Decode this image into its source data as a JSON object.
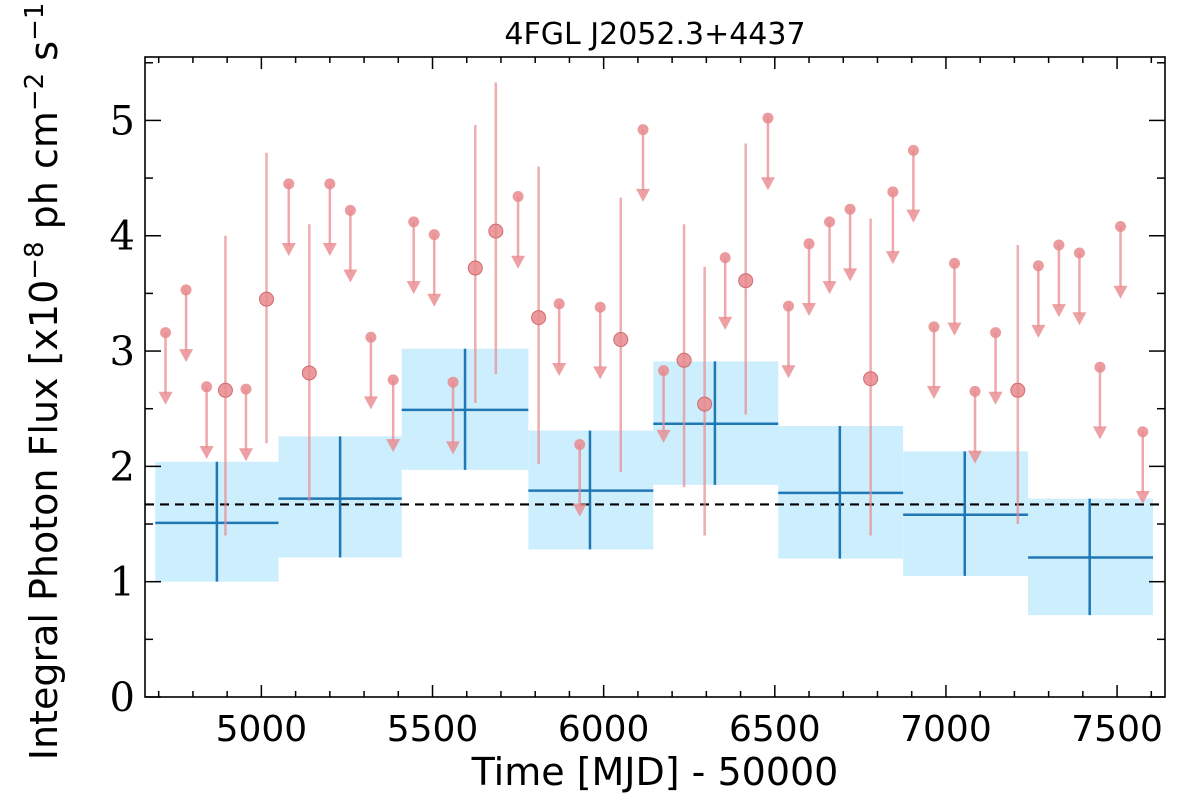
{
  "chart_data": {
    "type": "scatter",
    "title": "4FGL J2052.3+4437",
    "xlabel": "Time [MJD] - 50000",
    "ylabel_parts": {
      "prefix": "Integral Photon Flux [x10",
      "exp1": "−8",
      "mid": " ph cm",
      "exp2": "−2",
      "mid2": " s",
      "exp3": "−1",
      "suffix": "]"
    },
    "xlim": [
      4660,
      7640
    ],
    "ylim": [
      0,
      5.55
    ],
    "xticks": [
      5000,
      5500,
      6000,
      6500,
      7000,
      7500
    ],
    "xtick_labels": [
      "5000",
      "5500",
      "6000",
      "6500",
      "7000",
      "7500"
    ],
    "yticks": [
      0,
      1,
      2,
      3,
      4,
      5
    ],
    "ytick_labels": [
      "0",
      "1",
      "2",
      "3",
      "4",
      "5"
    ],
    "mean_flux": 1.67,
    "colors": {
      "bins": "#1f77b4",
      "band": "#cdeefd",
      "points": "#e88a8d",
      "mean_line": "#000000"
    },
    "series": [
      {
        "kind": "long_bins",
        "bins": [
          {
            "x": 4870,
            "x_lo": 4690,
            "x_hi": 5050,
            "y": 1.51,
            "y_lo": 1.0,
            "y_hi": 2.04
          },
          {
            "x": 5230,
            "x_lo": 5050,
            "x_hi": 5410,
            "y": 1.72,
            "y_lo": 1.21,
            "y_hi": 2.26
          },
          {
            "x": 5595,
            "x_lo": 5410,
            "x_hi": 5780,
            "y": 2.49,
            "y_lo": 1.97,
            "y_hi": 3.02
          },
          {
            "x": 5960,
            "x_lo": 5780,
            "x_hi": 6145,
            "y": 1.79,
            "y_lo": 1.28,
            "y_hi": 2.31
          },
          {
            "x": 6325,
            "x_lo": 6145,
            "x_hi": 6510,
            "y": 2.37,
            "y_lo": 1.84,
            "y_hi": 2.91
          },
          {
            "x": 6690,
            "x_lo": 6510,
            "x_hi": 6875,
            "y": 1.77,
            "y_lo": 1.2,
            "y_hi": 2.35
          },
          {
            "x": 7055,
            "x_lo": 6875,
            "x_hi": 7240,
            "y": 1.58,
            "y_lo": 1.05,
            "y_hi": 2.13
          },
          {
            "x": 7420,
            "x_lo": 7240,
            "x_hi": 7605,
            "y": 1.21,
            "y_lo": 0.71,
            "y_hi": 1.72
          }
        ]
      },
      {
        "kind": "short_bins",
        "points": [
          {
            "x": 4720,
            "y": 3.16,
            "ul": true
          },
          {
            "x": 4780,
            "y": 3.53,
            "ul": true
          },
          {
            "x": 4840,
            "y": 2.69,
            "ul": true
          },
          {
            "x": 4895,
            "y": 2.66,
            "lo": 1.4,
            "hi": 4.0
          },
          {
            "x": 4955,
            "y": 2.67,
            "ul": true
          },
          {
            "x": 5015,
            "y": 3.45,
            "lo": 2.2,
            "hi": 4.72
          },
          {
            "x": 5080,
            "y": 4.45,
            "ul": true
          },
          {
            "x": 5140,
            "y": 2.81,
            "lo": 1.7,
            "hi": 4.1
          },
          {
            "x": 5200,
            "y": 4.45,
            "ul": true
          },
          {
            "x": 5260,
            "y": 4.22,
            "ul": true
          },
          {
            "x": 5320,
            "y": 3.12,
            "ul": true
          },
          {
            "x": 5385,
            "y": 2.75,
            "ul": true
          },
          {
            "x": 5445,
            "y": 4.12,
            "ul": true
          },
          {
            "x": 5505,
            "y": 4.01,
            "ul": true
          },
          {
            "x": 5560,
            "y": 2.73,
            "ul": true
          },
          {
            "x": 5625,
            "y": 3.72,
            "lo": 2.55,
            "hi": 4.96
          },
          {
            "x": 5685,
            "y": 4.04,
            "lo": 2.8,
            "hi": 5.33
          },
          {
            "x": 5750,
            "y": 4.34,
            "ul": true
          },
          {
            "x": 5810,
            "y": 3.29,
            "lo": 2.02,
            "hi": 4.6
          },
          {
            "x": 5870,
            "y": 3.41,
            "ul": true
          },
          {
            "x": 5930,
            "y": 2.19,
            "ul": true
          },
          {
            "x": 5990,
            "y": 3.38,
            "ul": true
          },
          {
            "x": 6050,
            "y": 3.1,
            "lo": 1.95,
            "hi": 4.33
          },
          {
            "x": 6115,
            "y": 4.92,
            "ul": true
          },
          {
            "x": 6175,
            "y": 2.83,
            "ul": true
          },
          {
            "x": 6235,
            "y": 2.92,
            "lo": 1.82,
            "hi": 4.1
          },
          {
            "x": 6295,
            "y": 2.54,
            "lo": 1.4,
            "hi": 3.73
          },
          {
            "x": 6355,
            "y": 3.81,
            "ul": true
          },
          {
            "x": 6415,
            "y": 3.61,
            "lo": 2.45,
            "hi": 4.8
          },
          {
            "x": 6480,
            "y": 5.02,
            "ul": true
          },
          {
            "x": 6540,
            "y": 3.39,
            "ul": true
          },
          {
            "x": 6600,
            "y": 3.93,
            "ul": true
          },
          {
            "x": 6660,
            "y": 4.12,
            "ul": true
          },
          {
            "x": 6720,
            "y": 4.23,
            "ul": true
          },
          {
            "x": 6780,
            "y": 2.76,
            "lo": 1.4,
            "hi": 4.15
          },
          {
            "x": 6845,
            "y": 4.38,
            "ul": true
          },
          {
            "x": 6905,
            "y": 4.74,
            "ul": true
          },
          {
            "x": 6965,
            "y": 3.21,
            "ul": true
          },
          {
            "x": 7025,
            "y": 3.76,
            "ul": true
          },
          {
            "x": 7085,
            "y": 2.65,
            "ul": true
          },
          {
            "x": 7145,
            "y": 3.16,
            "ul": true
          },
          {
            "x": 7210,
            "y": 2.66,
            "lo": 1.5,
            "hi": 3.92
          },
          {
            "x": 7270,
            "y": 3.74,
            "ul": true
          },
          {
            "x": 7330,
            "y": 3.92,
            "ul": true
          },
          {
            "x": 7390,
            "y": 3.85,
            "ul": true
          },
          {
            "x": 7450,
            "y": 2.86,
            "ul": true
          },
          {
            "x": 7510,
            "y": 4.08,
            "ul": true
          },
          {
            "x": 7575,
            "y": 2.3,
            "ul": true
          }
        ]
      }
    ]
  }
}
